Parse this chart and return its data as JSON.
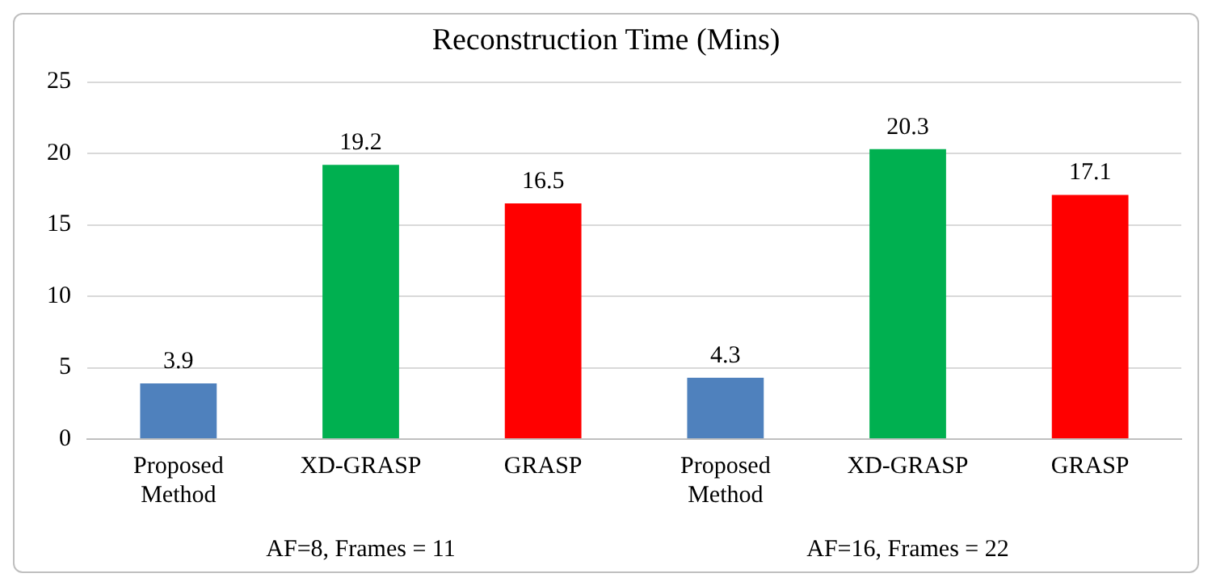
{
  "chart_data": {
    "type": "bar",
    "title": "Reconstruction Time (Mins)",
    "categories": [
      "Proposed Method",
      "XD-GRASP",
      "GRASP",
      "Proposed Method",
      "XD-GRASP",
      "GRASP"
    ],
    "values": [
      3.9,
      19.2,
      16.5,
      4.3,
      20.3,
      17.1
    ],
    "colors": [
      "#4f81bd",
      "#00b050",
      "#ff0000",
      "#4f81bd",
      "#00b050",
      "#ff0000"
    ],
    "ylim": [
      0,
      25
    ],
    "yticks": [
      0,
      5,
      10,
      15,
      20,
      25
    ],
    "grid": "y",
    "data_labels": true,
    "legend": false,
    "annotations": [
      "AF=8, Frames = 11",
      "AF=16, Frames = 22"
    ]
  }
}
